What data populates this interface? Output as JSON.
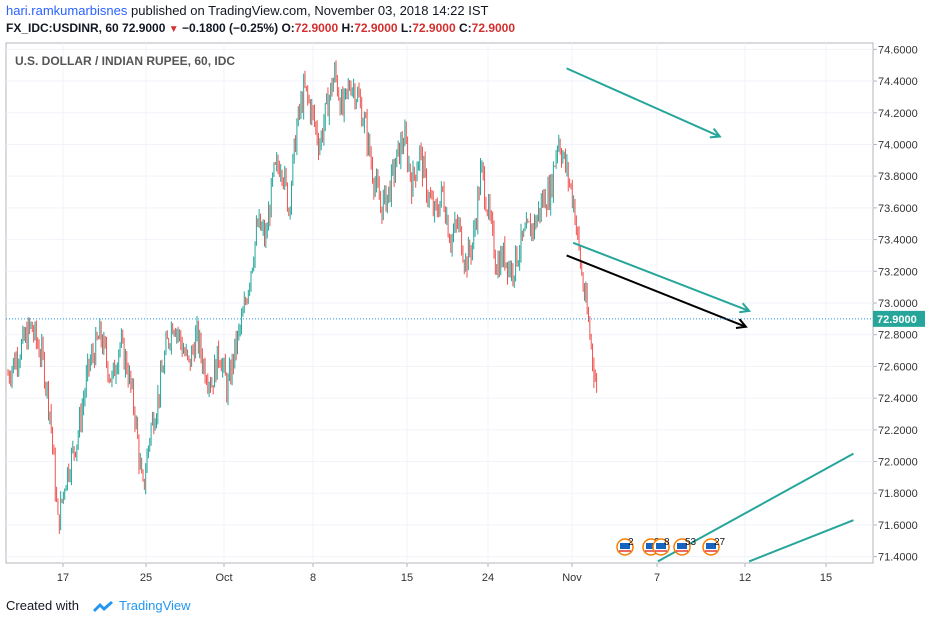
{
  "header": {
    "author": "hari.ramkumarbisnes",
    "published": "published on TradingView.com, November 03, 2018 14:22 IST",
    "symbol": "FX_IDC:USDINR, 60",
    "last": "72.9000",
    "change": "−0.1800 (−0.25%)",
    "o_label": "O:",
    "o": "72.9000",
    "h_label": "H:",
    "h": "72.9000",
    "l_label": "L:",
    "l": "72.9000",
    "c_label": "C:",
    "c": "72.9000"
  },
  "footer": {
    "created_with": "Created with",
    "brand": "TradingView"
  },
  "chart_data": {
    "type": "candlestick",
    "title": "U.S. DOLLAR / INDIAN RUPEE, 60, IDC",
    "x_ticks": [
      "17",
      "25",
      "Oct",
      "8",
      "15",
      "24",
      "Nov",
      "7",
      "12",
      "15"
    ],
    "y_ticks": [
      "74.6000",
      "74.4000",
      "74.2000",
      "74.0000",
      "73.8000",
      "73.6000",
      "73.4000",
      "73.2000",
      "73.0000",
      "72.8000",
      "72.6000",
      "72.4000",
      "72.2000",
      "72.0000",
      "71.8000",
      "71.6000",
      "71.4000"
    ],
    "ylim": [
      71.36,
      74.64
    ],
    "last_price": 72.9,
    "last_price_label": "72.9000",
    "colors": {
      "up": "#26a69a",
      "down": "#ef5350",
      "trend": "#26a69a",
      "arrow": "#000000",
      "price_line": "#2196f3"
    },
    "price_path": [
      [
        0,
        72.55
      ],
      [
        3,
        72.7
      ],
      [
        6,
        72.85
      ],
      [
        9,
        72.65
      ],
      [
        11,
        72.3
      ],
      [
        13,
        71.6
      ],
      [
        15,
        71.9
      ],
      [
        18,
        72.15
      ],
      [
        21,
        72.6
      ],
      [
        24,
        72.8
      ],
      [
        27,
        72.5
      ],
      [
        29,
        72.75
      ],
      [
        31,
        72.6
      ],
      [
        33,
        72.3
      ],
      [
        35,
        71.8
      ],
      [
        37,
        72.2
      ],
      [
        39,
        72.4
      ],
      [
        41,
        72.7
      ],
      [
        43,
        72.9
      ],
      [
        45,
        72.75
      ],
      [
        47,
        72.6
      ],
      [
        49,
        72.8
      ],
      [
        51,
        72.6
      ],
      [
        53,
        72.5
      ],
      [
        55,
        72.7
      ],
      [
        57,
        72.45
      ],
      [
        59,
        72.7
      ],
      [
        61,
        72.9
      ],
      [
        63,
        73.2
      ],
      [
        65,
        73.5
      ],
      [
        67,
        73.4
      ],
      [
        69,
        73.8
      ],
      [
        71,
        73.9
      ],
      [
        73,
        73.6
      ],
      [
        75,
        74.1
      ],
      [
        77,
        74.35
      ],
      [
        79,
        74.2
      ],
      [
        81,
        74.0
      ],
      [
        83,
        74.25
      ],
      [
        85,
        74.45
      ],
      [
        87,
        74.2
      ],
      [
        89,
        74.4
      ],
      [
        91,
        74.3
      ],
      [
        93,
        74.1
      ],
      [
        95,
        73.8
      ],
      [
        97,
        73.6
      ],
      [
        99,
        73.7
      ],
      [
        101,
        73.9
      ],
      [
        103,
        74.05
      ],
      [
        105,
        73.75
      ],
      [
        107,
        73.95
      ],
      [
        109,
        73.7
      ],
      [
        111,
        73.55
      ],
      [
        113,
        73.7
      ],
      [
        115,
        73.4
      ],
      [
        117,
        73.5
      ],
      [
        119,
        73.25
      ],
      [
        121,
        73.4
      ],
      [
        123,
        73.85
      ],
      [
        125,
        73.55
      ],
      [
        127,
        73.25
      ],
      [
        129,
        73.3
      ],
      [
        131,
        73.2
      ],
      [
        133,
        73.35
      ],
      [
        135,
        73.45
      ],
      [
        137,
        73.5
      ],
      [
        139,
        73.65
      ],
      [
        141,
        73.7
      ],
      [
        143,
        74.05
      ],
      [
        145,
        73.85
      ],
      [
        147,
        73.65
      ],
      [
        149,
        73.2
      ],
      [
        151,
        72.85
      ],
      [
        153,
        72.45
      ]
    ],
    "trendlines": [
      {
        "from": [
          8.6,
          74.48
        ],
        "to": [
          10.95,
          74.05
        ],
        "kind": "channel-top"
      },
      {
        "from": [
          8.7,
          73.38
        ],
        "to": [
          11.4,
          72.95
        ],
        "kind": "channel-mid"
      },
      {
        "from": [
          8.6,
          73.3
        ],
        "to": [
          11.35,
          72.85
        ],
        "kind": "black-arrow"
      },
      {
        "from": [
          10.0,
          71.37
        ],
        "to": [
          13.0,
          72.05
        ],
        "kind": "lower-channel-1"
      },
      {
        "from": [
          11.4,
          71.37
        ],
        "to": [
          13.0,
          71.63
        ],
        "kind": "lower-channel-2"
      }
    ],
    "event_badges": [
      {
        "label": "2",
        "date": "Nov 2"
      },
      {
        "label": "2",
        "date": "Nov 4"
      },
      {
        "label": "8",
        "date": "Nov 4"
      },
      {
        "label": "53",
        "date": "Nov 5"
      },
      {
        "label": "27",
        "date": "Nov 6"
      }
    ]
  }
}
